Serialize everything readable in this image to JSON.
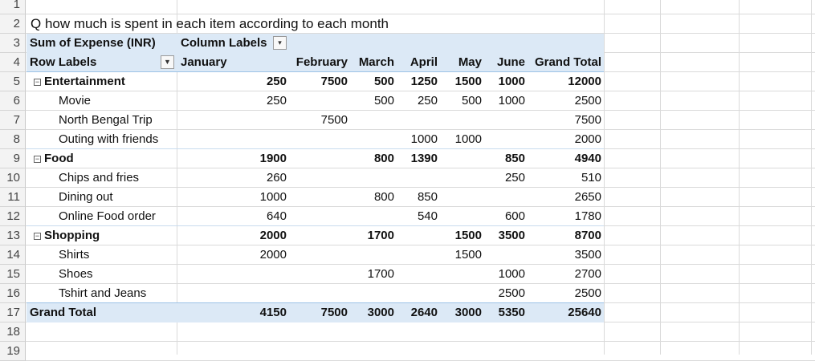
{
  "question": "Q how much is  spent in each item according to each month",
  "pivot": {
    "value_field": "Sum of Expense (INR)",
    "column_labels": "Column Labels",
    "row_labels": "Row Labels",
    "columns": [
      "January",
      "February",
      "March",
      "April",
      "May",
      "June",
      "Grand Total"
    ],
    "rows": [
      {
        "label": "Entertainment",
        "type": "group",
        "values": [
          "250",
          "7500",
          "500",
          "1250",
          "1500",
          "1000",
          "12000"
        ]
      },
      {
        "label": "Movie",
        "type": "item",
        "values": [
          "250",
          "",
          "500",
          "250",
          "500",
          "1000",
          "2500"
        ]
      },
      {
        "label": "North Bengal Trip",
        "type": "item",
        "values": [
          "",
          "7500",
          "",
          "",
          "",
          "",
          "7500"
        ]
      },
      {
        "label": "Outing with friends",
        "type": "item",
        "values": [
          "",
          "",
          "",
          "1000",
          "1000",
          "",
          "2000"
        ]
      },
      {
        "label": "Food",
        "type": "group",
        "values": [
          "1900",
          "",
          "800",
          "1390",
          "",
          "850",
          "4940"
        ]
      },
      {
        "label": "Chips and fries",
        "type": "item",
        "values": [
          "260",
          "",
          "",
          "",
          "",
          "250",
          "510"
        ]
      },
      {
        "label": "Dining out",
        "type": "item",
        "values": [
          "1000",
          "",
          "800",
          "850",
          "",
          "",
          "2650"
        ]
      },
      {
        "label": "Online Food order",
        "type": "item",
        "values": [
          "640",
          "",
          "",
          "540",
          "",
          "600",
          "1780"
        ]
      },
      {
        "label": "Shopping",
        "type": "group",
        "values": [
          "2000",
          "",
          "1700",
          "",
          "1500",
          "3500",
          "8700"
        ]
      },
      {
        "label": "Shirts",
        "type": "item",
        "values": [
          "2000",
          "",
          "",
          "",
          "1500",
          "",
          "3500"
        ]
      },
      {
        "label": "Shoes",
        "type": "item",
        "values": [
          "",
          "",
          "1700",
          "",
          "",
          "1000",
          "2700"
        ]
      },
      {
        "label": "Tshirt and Jeans",
        "type": "item",
        "values": [
          "",
          "",
          "",
          "",
          "",
          "2500",
          "2500"
        ]
      },
      {
        "label": "Grand Total",
        "type": "total",
        "values": [
          "4150",
          "7500",
          "3000",
          "2640",
          "3000",
          "5350",
          "25640"
        ]
      }
    ]
  },
  "row_numbers": [
    "1",
    "2",
    "3",
    "4",
    "5",
    "6",
    "7",
    "8",
    "9",
    "10",
    "11",
    "12",
    "13",
    "14",
    "15",
    "16",
    "17",
    "18",
    "19"
  ],
  "icons": {
    "collapse": "minus-box-icon",
    "filter": "filter-icon",
    "dropdown": "chevron-down-icon"
  }
}
